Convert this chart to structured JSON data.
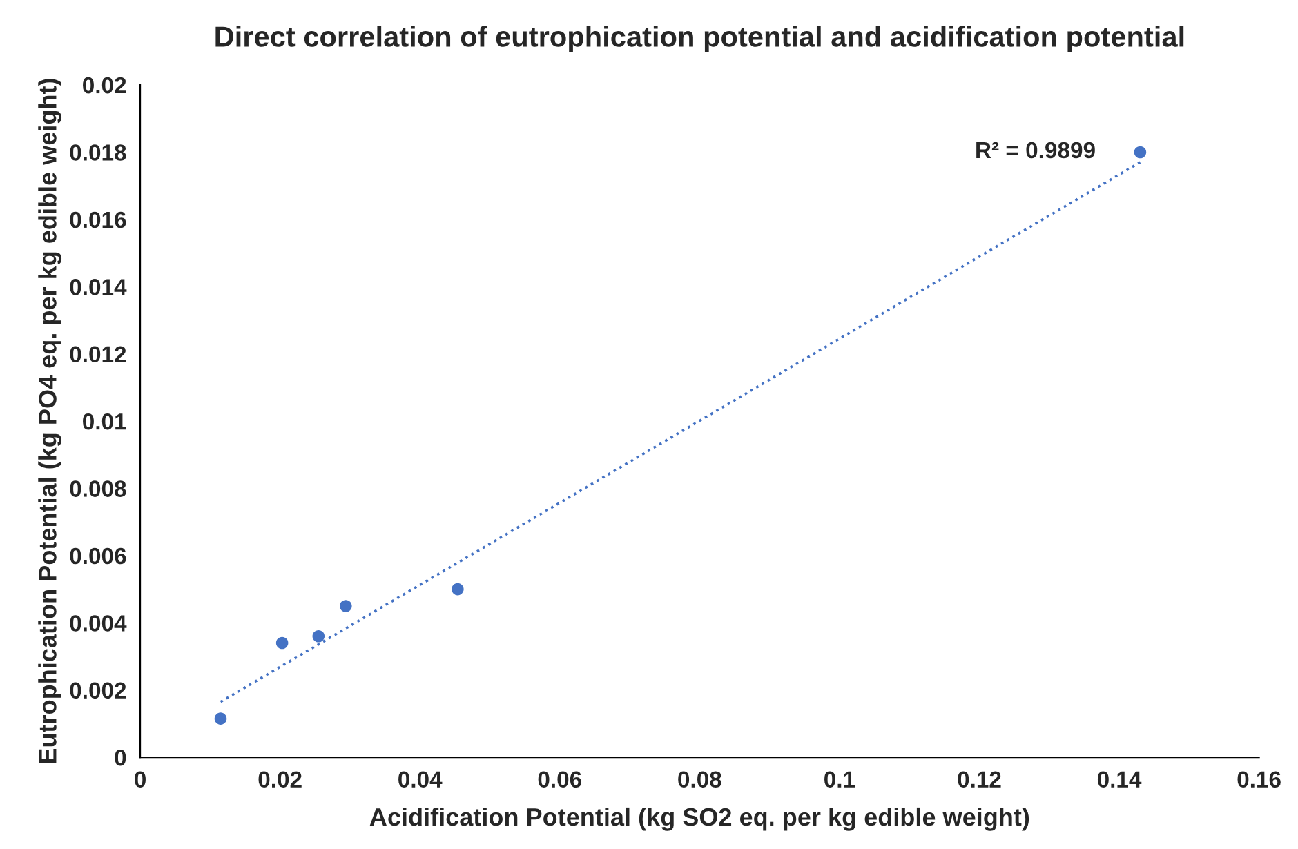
{
  "chart_data": {
    "type": "scatter",
    "title": "Direct correlation of eutrophication potential and acidification potential",
    "xlabel": "Acidification Potential (kg SO2 eq. per kg edible weight)",
    "ylabel": "Eutrophication Potential (kg PO4 eq. per kg edible weight)",
    "series": [
      {
        "color": "#4472c4",
        "marker": "circle",
        "x": [
          0.0115,
          0.0203,
          0.0255,
          0.0294,
          0.0454,
          0.143
        ],
        "values": [
          0.00115,
          0.0034,
          0.0036,
          0.0045,
          0.005,
          0.018
        ]
      },
      {
        "type": "line",
        "color": "#4472c4",
        "line_style": "dotted",
        "x": [
          0.0115,
          0.143
        ],
        "values": [
          0.00165,
          0.0177
        ]
      }
    ],
    "annotations": [
      "R² = 0.9899"
    ],
    "xlim": [
      0,
      0.16
    ],
    "xticks": [
      0,
      0.02,
      0.04,
      0.06,
      0.08,
      0.1,
      0.12,
      0.14,
      0.16
    ],
    "ylim": [
      0,
      0.02
    ],
    "yticks": [
      0,
      0.002,
      0.004,
      0.006,
      0.008,
      0.01,
      0.012,
      0.014,
      0.016,
      0.018,
      0.02
    ],
    "grid": false,
    "legend": false
  }
}
